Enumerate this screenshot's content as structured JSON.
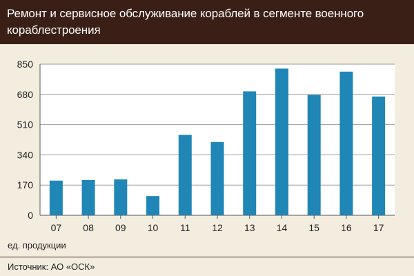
{
  "title": "Ремонт и сервисное обслуживание кораблей в сегменте военного кораблестроения",
  "unit_label": "ед. продукции",
  "source": "Источник: АО «ОСК»",
  "colors": {
    "bar": "#1f86b6",
    "header": "#3a1f16",
    "background": "#f3ede0",
    "plot": "#ffffff",
    "grid": "#9a9a9a"
  },
  "chart_data": {
    "type": "bar",
    "title": "Ремонт и сервисное обслуживание кораблей в сегменте военного кораблестроения",
    "xlabel": "",
    "ylabel": "ед. продукции",
    "categories": [
      "07",
      "08",
      "09",
      "10",
      "11",
      "12",
      "13",
      "14",
      "15",
      "16",
      "17"
    ],
    "values": [
      195,
      198,
      202,
      108,
      452,
      412,
      697,
      825,
      677,
      808,
      668
    ],
    "ylim": [
      0,
      850
    ],
    "yticks": [
      0,
      170,
      340,
      510,
      680,
      850
    ],
    "grid": true
  }
}
